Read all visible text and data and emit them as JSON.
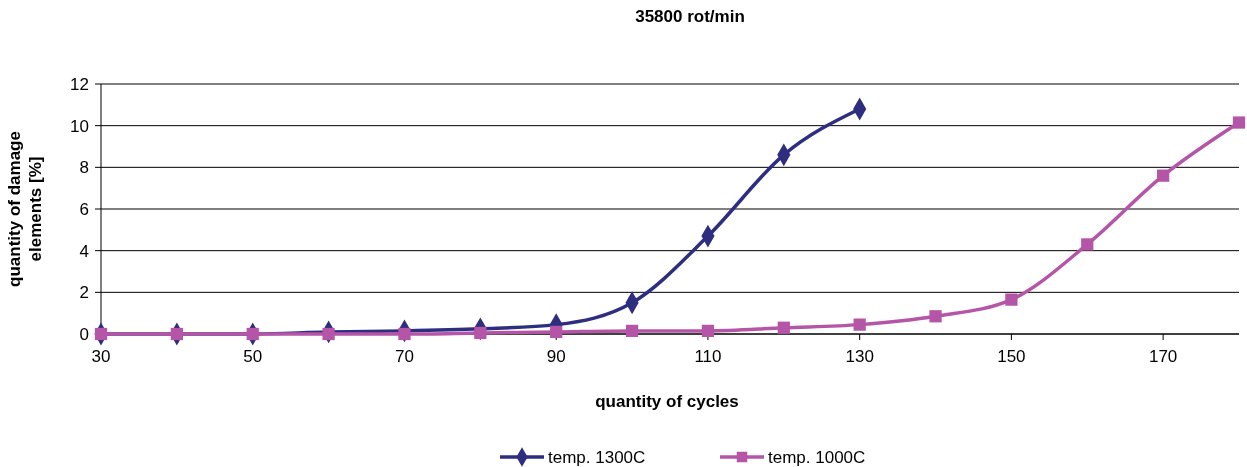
{
  "chart_data": {
    "type": "line",
    "title": "35800 rot/min",
    "xlabel": "quantity of cycles",
    "ylabel": "quantity of damage elements [%]",
    "xlim": [
      30,
      180
    ],
    "xticks": [
      30,
      50,
      70,
      90,
      110,
      130,
      150,
      170
    ],
    "ylim": [
      0,
      12
    ],
    "yticks": [
      0,
      2,
      4,
      6,
      8,
      10,
      12
    ],
    "grid": "y",
    "legend": "bottom",
    "line_style": "solid",
    "series": [
      {
        "name": "temp. 1300C",
        "color": "#2e2e80",
        "marker": "diamond",
        "x": [
          30,
          40,
          50,
          60,
          70,
          80,
          90,
          100,
          110,
          120,
          130
        ],
        "values": [
          0,
          0,
          0,
          0.1,
          0.15,
          0.25,
          0.45,
          1.5,
          4.7,
          8.6,
          10.8
        ]
      },
      {
        "name": "temp. 1000C",
        "color": "#b555a8",
        "marker": "square",
        "x": [
          30,
          40,
          50,
          60,
          70,
          80,
          90,
          100,
          110,
          120,
          130,
          140,
          150,
          160,
          170,
          180
        ],
        "values": [
          0,
          0,
          0,
          0,
          0,
          0.05,
          0.1,
          0.15,
          0.15,
          0.3,
          0.45,
          0.85,
          1.65,
          4.3,
          7.6,
          10.15
        ]
      }
    ]
  }
}
